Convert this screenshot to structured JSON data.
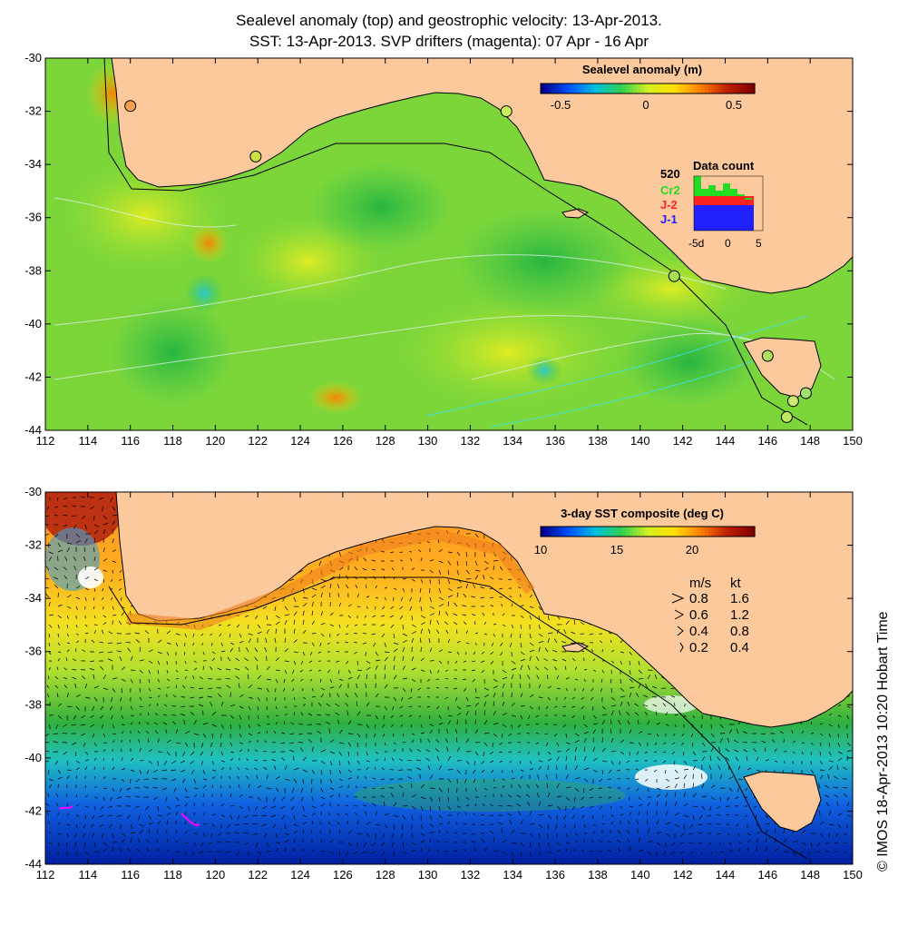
{
  "title_line1": "Sealevel anomaly (top) and geostrophic velocity: 13-Apr-2013.",
  "title_line2": "SST: 13-Apr-2013. SVP drifters (magenta): 07 Apr - 16 Apr",
  "map": {
    "lon_ticks": [
      "112",
      "114",
      "116",
      "118",
      "120",
      "122",
      "124",
      "126",
      "128",
      "130",
      "132",
      "134",
      "136",
      "138",
      "140",
      "142",
      "144",
      "146",
      "148",
      "150"
    ],
    "lat_ticks": [
      "-30",
      "-32",
      "-34",
      "-36",
      "-38",
      "-40",
      "-42",
      "-44"
    ],
    "land_color": "#fbc99b"
  },
  "top_panel": {
    "colorbar_title": "Sealevel anomaly (m)",
    "colorbar_ticks": [
      "-0.5",
      "0",
      "0.5"
    ],
    "colorbar_colors": [
      "#00008a",
      "#0050ff",
      "#00c0e0",
      "#30d050",
      "#d0f020",
      "#ffe000",
      "#ff8000",
      "#c02000",
      "#800000"
    ],
    "data_count": {
      "title": "Data count",
      "max_label": "520",
      "missions": [
        {
          "label": "Cr2",
          "color": "#22dd22"
        },
        {
          "label": "J-2",
          "color": "#ff2020"
        },
        {
          "label": "J-1",
          "color": "#2020ff"
        }
      ],
      "x_ticks": [
        "-5d",
        "0",
        "5"
      ]
    },
    "tide_gauges": [
      {
        "lon": 116.0,
        "lat": -31.8,
        "color": "#f4a050"
      },
      {
        "lon": 121.9,
        "lat": -33.7,
        "color": "#c8e040"
      },
      {
        "lon": 133.7,
        "lat": -32.0,
        "color": "#c8f060"
      },
      {
        "lon": 141.6,
        "lat": -38.2,
        "color": "#a8e050"
      },
      {
        "lon": 146.0,
        "lat": -41.2,
        "color": "#b0e060"
      },
      {
        "lon": 147.2,
        "lat": -42.9,
        "color": "#c8e870"
      },
      {
        "lon": 147.8,
        "lat": -42.6,
        "color": "#a0e070"
      },
      {
        "lon": 146.9,
        "lat": -43.5,
        "color": "#c0e860"
      }
    ]
  },
  "bottom_panel": {
    "colorbar_title": "3-day SST composite (deg C)",
    "colorbar_ticks": [
      "10",
      "15",
      "20"
    ],
    "colorbar_colors": [
      "#00008a",
      "#0050ff",
      "#00c0e0",
      "#30d050",
      "#d0f020",
      "#ffe000",
      "#ff8000",
      "#c02000",
      "#800000"
    ],
    "velocity_legend": {
      "header_ms": "m/s",
      "header_kt": "kt",
      "rows": [
        {
          "ms": "0.8",
          "kt": "1.6"
        },
        {
          "ms": "0.6",
          "kt": "1.2"
        },
        {
          "ms": "0.4",
          "kt": "0.8"
        },
        {
          "ms": "0.2",
          "kt": "0.4"
        }
      ]
    }
  },
  "credit": "© IMOS 18-Apr-2013 10:20 Hobart Time"
}
